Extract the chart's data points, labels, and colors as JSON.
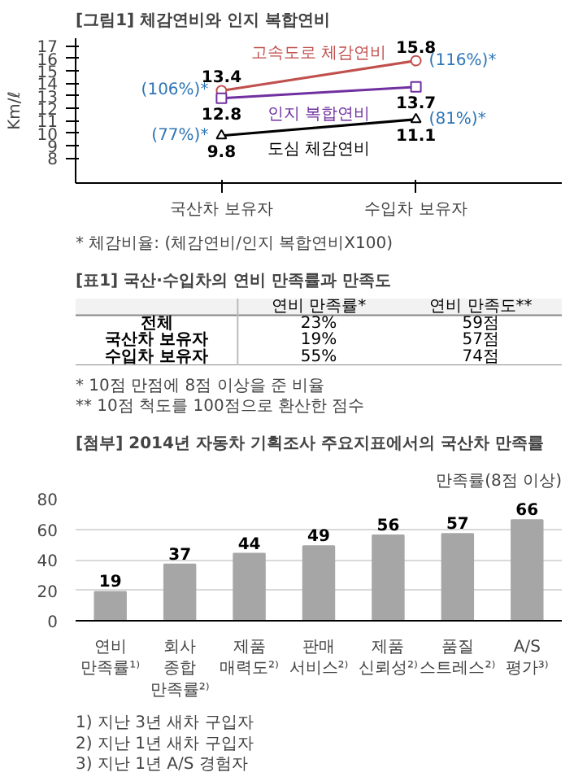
{
  "chart_data": [
    {
      "type": "line",
      "title": "[그림1] 체감연비와 인지 복합연비",
      "ylabel": "Km/ℓ",
      "categories": [
        "국산차 보유자",
        "수입차 보유자"
      ],
      "series": [
        {
          "name": "고속도로 체감연비",
          "color": "#c0504d",
          "marker": "circle",
          "values": [
            13.4,
            15.8
          ]
        },
        {
          "name": "인지 복합연비",
          "color": "#7030a0",
          "marker": "square",
          "values": [
            12.8,
            13.7
          ]
        },
        {
          "name": "도심 체감연비",
          "color": "#000000",
          "marker": "triangle",
          "values": [
            9.8,
            11.1
          ]
        }
      ],
      "ylim": [
        6,
        17.6
      ],
      "yticks": [
        8,
        9,
        10,
        11,
        12,
        13,
        14,
        15,
        16,
        17
      ],
      "data_labels": true,
      "legend": false,
      "grid": false,
      "line_style": "solid",
      "annotations": [
        {
          "text": "(106%)*",
          "x": "국산차 보유자",
          "y": 13.4
        },
        {
          "text": "(116%)*",
          "x": "수입차 보유자",
          "y": 15.8
        },
        {
          "text": "(77%)*",
          "x": "국산차 보유자",
          "y": 9.8
        },
        {
          "text": "(81%)*",
          "x": "수입차 보유자",
          "y": 11.1
        },
        "* 체감비율: (체감연비/인지 복합연비X100)"
      ]
    },
    {
      "type": "other",
      "title": "[표1] 국산·수입차의 연비 만족률과 만족도",
      "categories": [
        "연비 만족률*",
        "연비 만족도**"
      ],
      "y_categories": [
        "전체",
        "국산차 보유자",
        "수입차 보유자"
      ],
      "cell_labels": [
        [
          "23%",
          "59점"
        ],
        [
          "19%",
          "57점"
        ],
        [
          "55%",
          "74점"
        ]
      ],
      "annotations": [
        "* 10점 만점에 8점 이상을 준 비율",
        "** 10점 척도를 100점으로 환산한 점수"
      ]
    },
    {
      "type": "bar",
      "title": "[첨부] 2014년 자동차 기획조사 주요지표에서의 국산차 만족률",
      "ylabel": "만족률(8점 이상)",
      "categories": [
        "연비 만족률¹⁾",
        "회사 종합만족률²⁾",
        "제품 매력도²⁾",
        "판매 서비스²⁾",
        "제품 신뢰성²⁾",
        "품질 스트레스²⁾",
        "A/S 평가³⁾"
      ],
      "values": [
        19,
        37,
        44,
        49,
        56,
        57,
        66
      ],
      "color": "#a6a6a6",
      "ylim": [
        0,
        80
      ],
      "yticks": [
        0,
        20,
        40,
        60,
        80
      ],
      "grid": "y",
      "data_labels": true,
      "legend": false,
      "annotations": [
        "1) 지난 3년 새차 구입자",
        "2) 지난 1년 새차 구입자",
        "3) 지난 1년 A/S 경험자"
      ]
    }
  ]
}
